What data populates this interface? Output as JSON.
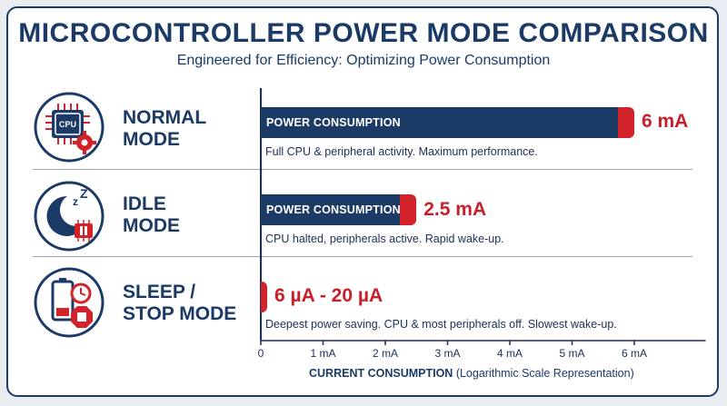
{
  "header": {
    "title": "MICROCONTROLLER POWER MODE COMPARISON",
    "subtitle": "Engineered for Efficiency: Optimizing Power Consumption"
  },
  "modes": [
    {
      "label": "NORMAL\nMODE",
      "icon": "cpu-gear-icon",
      "bar_text": "POWER CONSUMPTION",
      "value_text": "6 mA",
      "value_ma": 6,
      "description": "Full CPU & peripheral activity. Maximum performance."
    },
    {
      "label": "IDLE\nMODE",
      "icon": "moon-pause-icon",
      "bar_text": "POWER CONSUMPTION",
      "value_text": "2.5 mA",
      "value_ma": 2.5,
      "description": "CPU halted, peripherals active. Rapid wake-up."
    },
    {
      "label": "SLEEP /\nSTOP MODE",
      "icon": "battery-stop-icon",
      "bar_text": "",
      "value_text": "6 µA - 20 µA",
      "value_ma": 0.02,
      "description": "Deepest power saving. CPU & most peripherals off. Slowest wake-up."
    }
  ],
  "axis": {
    "title_bold": "CURRENT CONSUMPTION",
    "title_rest": " (Logarithmic Scale Representation)",
    "ticks": [
      "0",
      "1 mA",
      "2 mA",
      "3 mA",
      "4 mA",
      "5 mA",
      "6 mA"
    ]
  },
  "colors": {
    "navy": "#1b3a66",
    "red": "#d2232a"
  },
  "chart_data": {
    "type": "bar",
    "categories": [
      "NORMAL MODE",
      "IDLE MODE",
      "SLEEP / STOP MODE"
    ],
    "values": [
      6,
      2.5,
      0.02
    ],
    "xlabel": "CURRENT CONSUMPTION (Logarithmic Scale Representation)",
    "xlim": [
      0,
      7
    ],
    "orientation": "horizontal",
    "tick_labels": [
      "0",
      "1 mA",
      "2 mA",
      "3 mA",
      "4 mA",
      "5 mA",
      "6 mA"
    ]
  }
}
